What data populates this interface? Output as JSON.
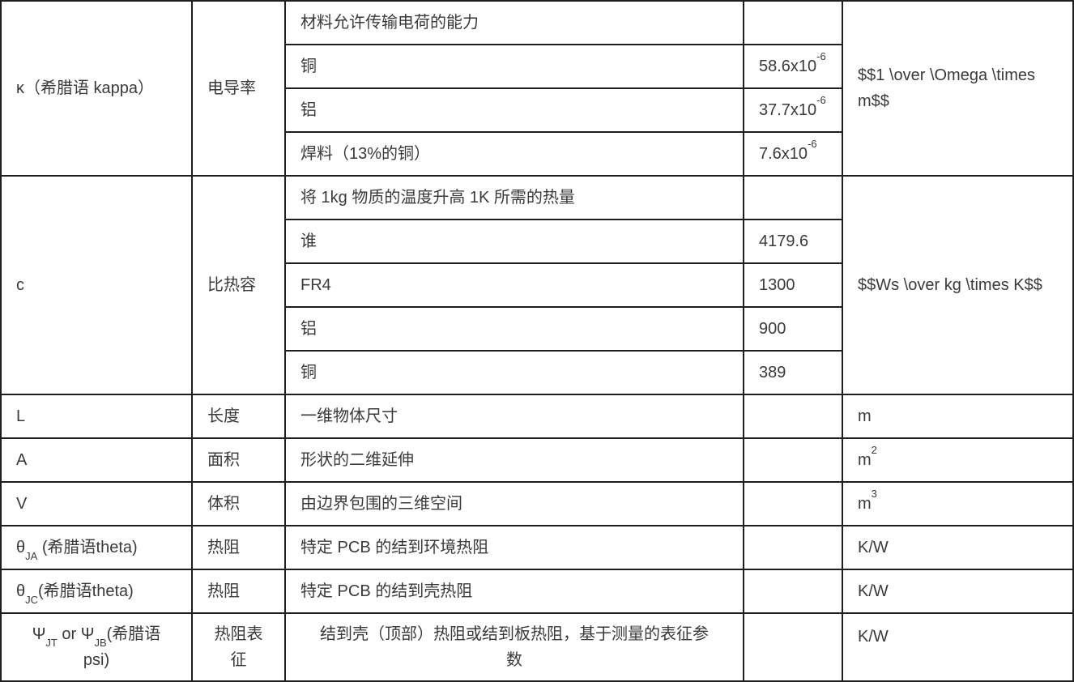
{
  "table": {
    "description_note": "reference table of physical quantities for PCB thermal design",
    "text_color": "#3a3a3a",
    "border_color": "#1e1e1e",
    "background_color": "#ffffff",
    "columns": [
      "symbol",
      "name",
      "description",
      "value",
      "unit"
    ],
    "blocks": [
      {
        "symbol": {
          "segments": [
            {
              "t": "κ（希腊语 kappa）"
            }
          ]
        },
        "name": "电导率",
        "unit": {
          "segments": [
            {
              "t": "$$1 \\over \\Omega \\times m$$"
            }
          ]
        },
        "rows": [
          {
            "description": "材料允许传输电荷的能力",
            "value": {
              "segments": []
            }
          },
          {
            "description": "铜",
            "value": {
              "segments": [
                {
                  "t": "58.6x10"
                },
                {
                  "sup": "-6"
                }
              ]
            }
          },
          {
            "description": "铝",
            "value": {
              "segments": [
                {
                  "t": "37.7x10"
                },
                {
                  "sup": "-6"
                }
              ]
            }
          },
          {
            "description": "焊料（13%的铜）",
            "value": {
              "segments": [
                {
                  "t": "7.6x10"
                },
                {
                  "sup": "-6"
                }
              ]
            }
          }
        ]
      },
      {
        "symbol": {
          "segments": [
            {
              "t": "c"
            }
          ]
        },
        "name": "比热容",
        "unit": {
          "segments": [
            {
              "t": "$$Ws \\over kg \\times K$$"
            }
          ]
        },
        "rows": [
          {
            "description": "将 1kg 物质的温度升高 1K 所需的热量",
            "value": {
              "segments": []
            }
          },
          {
            "description": "谁",
            "value": {
              "segments": [
                {
                  "t": "4179.6"
                }
              ]
            }
          },
          {
            "description": "FR4",
            "value": {
              "segments": [
                {
                  "t": "1300"
                }
              ]
            }
          },
          {
            "description": "铝",
            "value": {
              "segments": [
                {
                  "t": "900"
                }
              ]
            }
          },
          {
            "description": "铜",
            "value": {
              "segments": [
                {
                  "t": "389"
                }
              ]
            }
          }
        ]
      },
      {
        "symbol": {
          "segments": [
            {
              "t": "L"
            }
          ]
        },
        "name": "长度",
        "unit": {
          "segments": [
            {
              "t": "m"
            }
          ]
        },
        "rows": [
          {
            "description": "一维物体尺寸",
            "value": {
              "segments": []
            }
          }
        ]
      },
      {
        "symbol": {
          "segments": [
            {
              "t": "A"
            }
          ]
        },
        "name": "面积",
        "unit": {
          "segments": [
            {
              "t": "m"
            },
            {
              "sup": "2"
            }
          ]
        },
        "rows": [
          {
            "description": "形状的二维延伸",
            "value": {
              "segments": []
            }
          }
        ]
      },
      {
        "symbol": {
          "segments": [
            {
              "t": "V"
            }
          ]
        },
        "name": "体积",
        "unit": {
          "segments": [
            {
              "t": "m"
            },
            {
              "sup": "3"
            }
          ]
        },
        "rows": [
          {
            "description": "由边界包围的三维空间",
            "value": {
              "segments": []
            }
          }
        ]
      },
      {
        "symbol": {
          "segments": [
            {
              "t": "θ"
            },
            {
              "sub": "JA"
            },
            {
              "t": " (希腊语theta)"
            }
          ]
        },
        "name": "热阻",
        "unit": {
          "segments": [
            {
              "t": "K/W"
            }
          ]
        },
        "rows": [
          {
            "description": "特定 PCB 的结到环境热阻",
            "value": {
              "segments": []
            }
          }
        ]
      },
      {
        "symbol": {
          "segments": [
            {
              "t": "θ"
            },
            {
              "sub": "JC"
            },
            {
              "t": "(希腊语theta)"
            }
          ]
        },
        "name": "热阻",
        "unit": {
          "segments": [
            {
              "t": "K/W"
            }
          ]
        },
        "rows": [
          {
            "description": "特定 PCB 的结到壳热阻",
            "value": {
              "segments": []
            }
          }
        ]
      },
      {
        "symbol": {
          "segments": [
            {
              "t": "Ψ"
            },
            {
              "sub": "JT"
            },
            {
              "t": " or Ψ"
            },
            {
              "sub": "JB"
            },
            {
              "t": "(希腊语 psi)"
            }
          ]
        },
        "name": "热阻表征",
        "unit": {
          "segments": [
            {
              "t": "K/W"
            }
          ]
        },
        "tall": true,
        "rows": [
          {
            "description": "结到壳（顶部）热阻或结到板热阻，基于测量的表征参数",
            "value": {
              "segments": []
            }
          }
        ]
      }
    ]
  }
}
